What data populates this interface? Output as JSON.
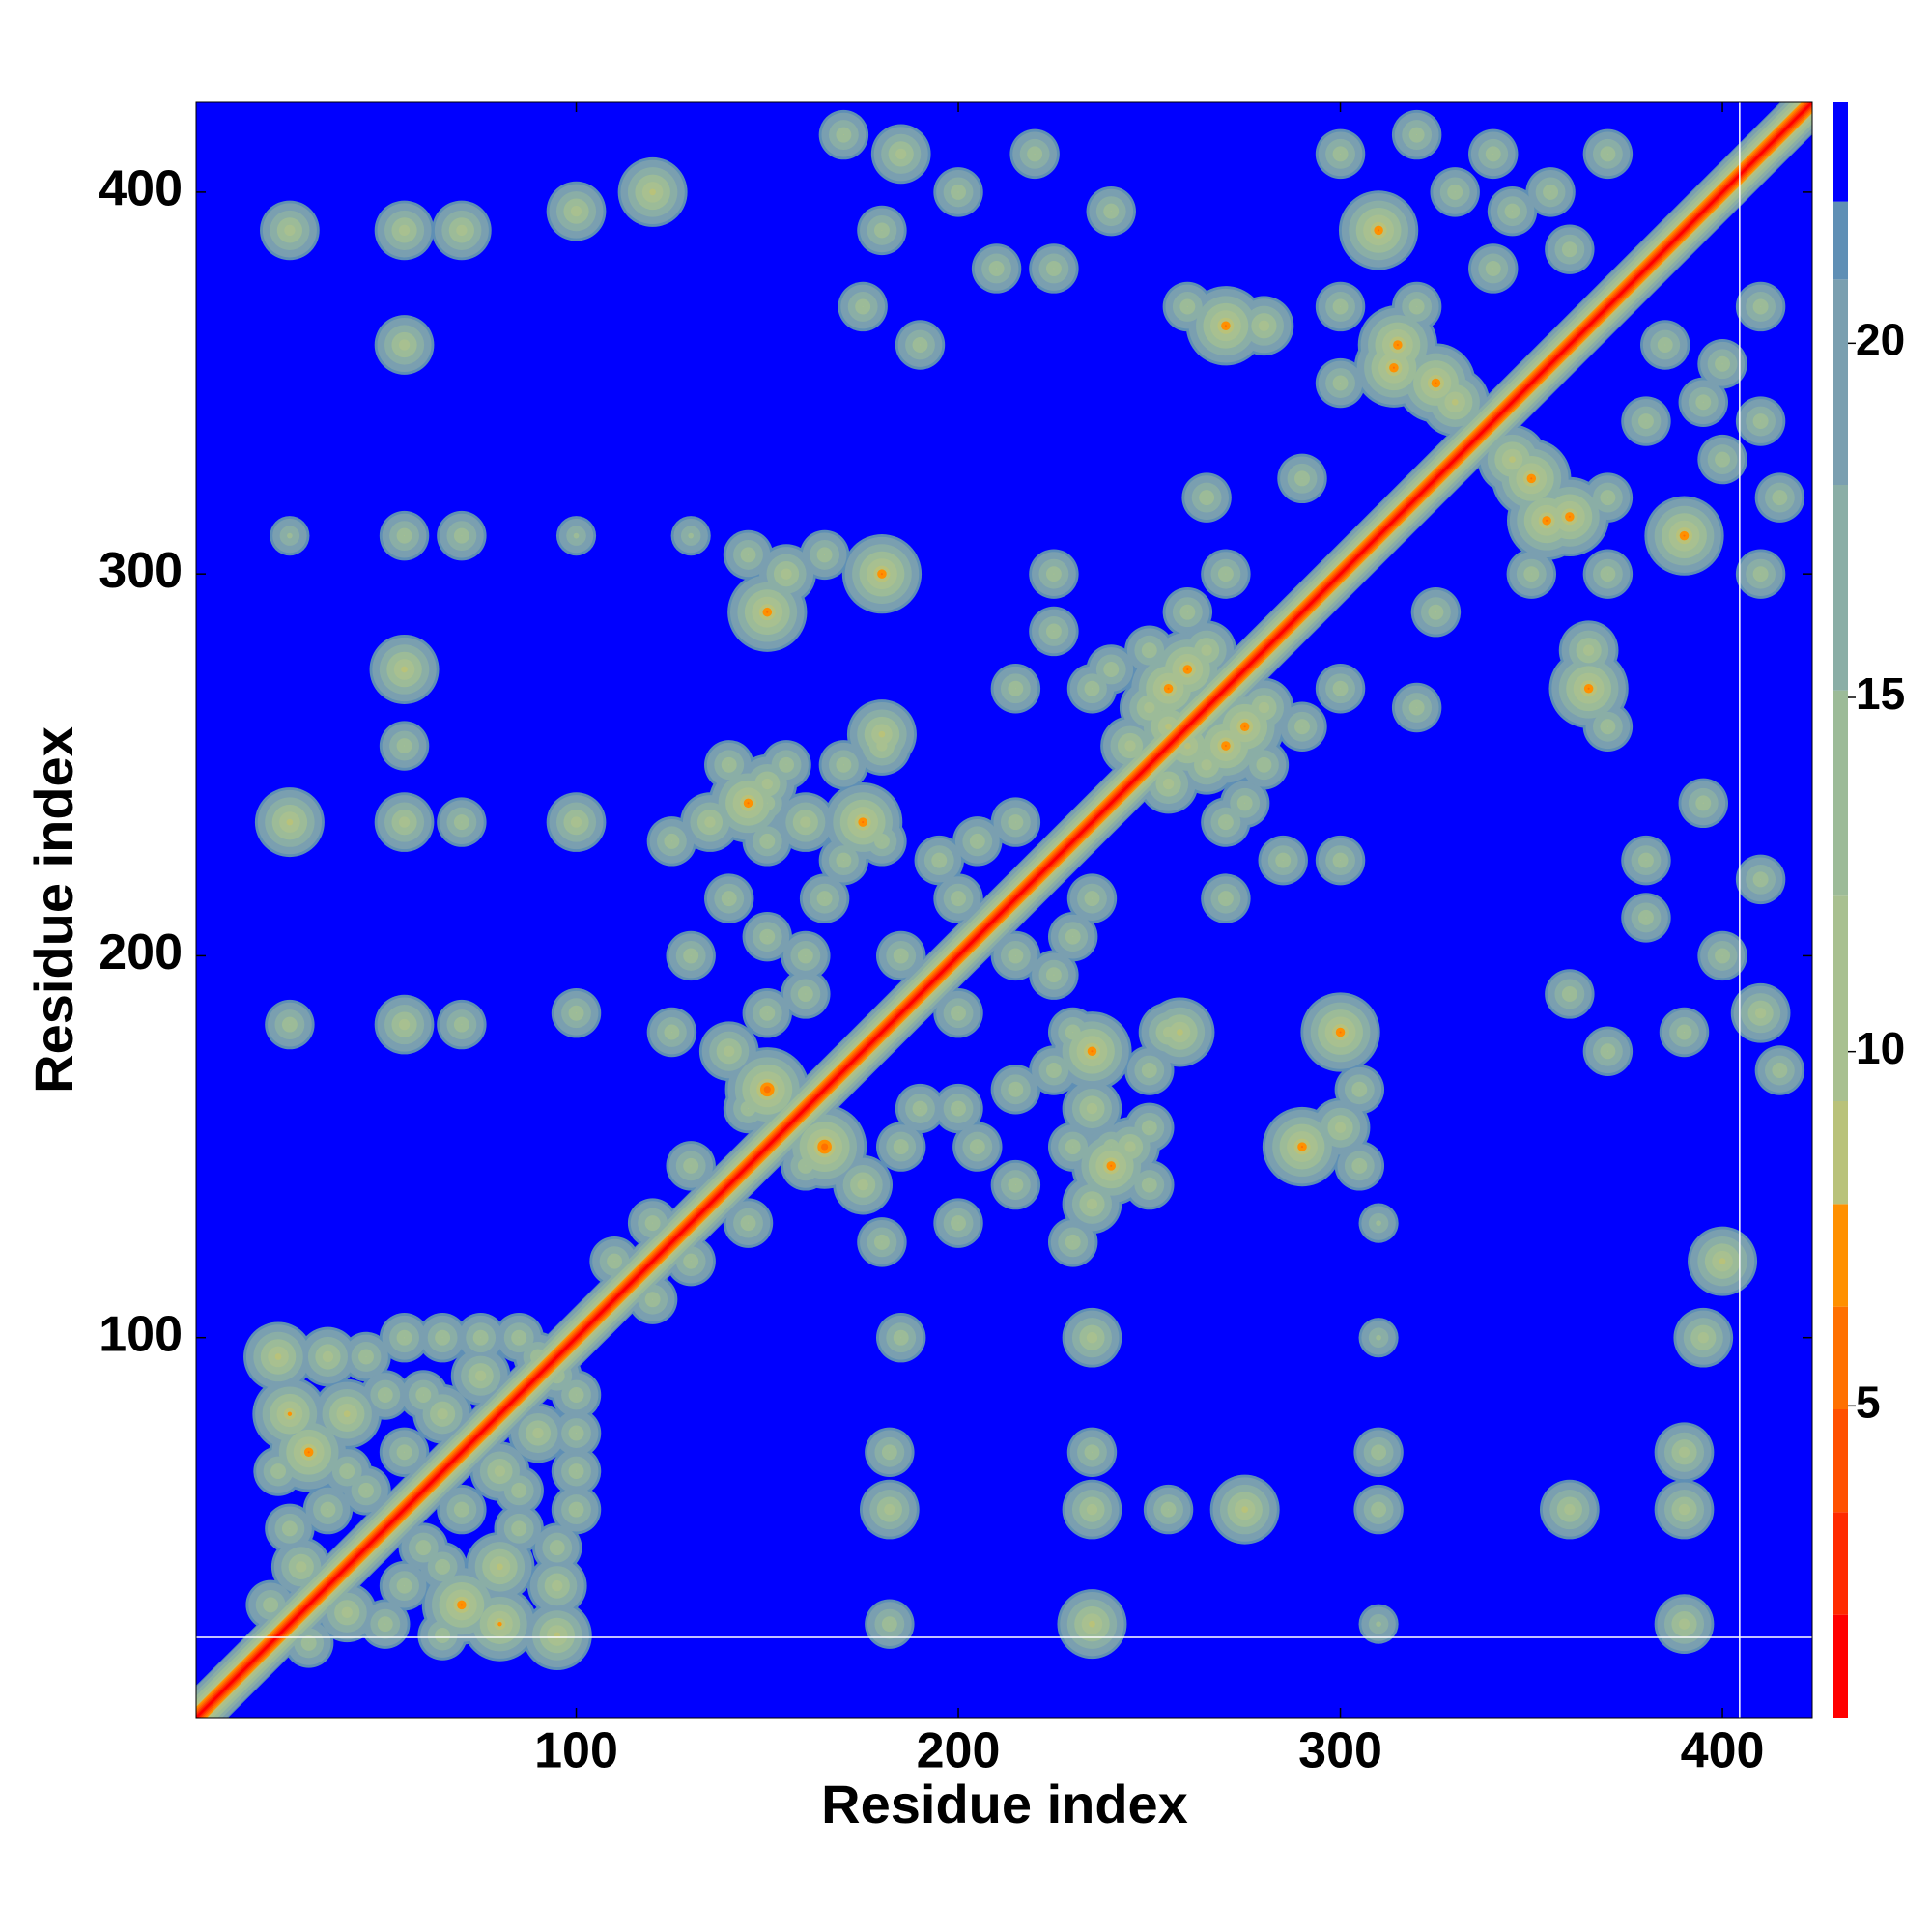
{
  "chart_data": {
    "type": "contact_map",
    "xlabel": "Residue index",
    "ylabel": "Residue index",
    "xlim": [
      0.5,
      423.5
    ],
    "ylim": [
      0.5,
      423.5
    ],
    "xticks": [
      100,
      200,
      300,
      400
    ],
    "yticks": [
      100,
      200,
      300,
      400
    ],
    "hlines": [
      21.5
    ],
    "vlines": [
      404.5
    ],
    "diagonal": 0.8,
    "x": [
      22,
      25,
      30,
      35,
      45,
      55,
      65,
      75,
      85,
      22,
      25,
      28,
      40,
      50,
      60,
      45,
      55,
      35,
      40,
      65,
      75,
      90,
      20,
      150,
      140,
      150,
      160,
      165,
      170,
      175,
      180,
      160,
      140,
      130,
      125,
      135,
      150,
      200,
      185,
      195,
      205,
      215,
      120,
      130,
      110,
      145,
      160,
      150,
      170,
      150,
      150,
      155,
      150,
      155,
      180,
      145,
      165,
      180,
      225,
      225,
      235,
      240,
      250,
      260,
      215,
      255,
      260,
      270,
      280,
      265,
      245,
      310,
      315,
      325,
      320,
      330,
      340,
      345,
      355,
      360,
      270,
      280,
      260,
      300,
      265,
      270,
      290,
      185,
      200,
      220,
      170,
      180,
      210,
      225,
      190,
      240,
      175,
      25,
      55,
      70,
      100,
      120,
      55,
      55,
      70,
      25,
      100,
      55,
      55,
      25,
      55,
      70,
      100,
      125,
      25,
      55,
      70,
      100,
      130,
      140,
      145,
      180,
      314,
      300,
      330,
      340,
      370,
      320,
      300
    ],
    "y": [
      95,
      80,
      70,
      95,
      95,
      100,
      100,
      100,
      100,
      65,
      50,
      40,
      80,
      85,
      85,
      60,
      70,
      55,
      65,
      80,
      90,
      95,
      30,
      165,
      175,
      185,
      200,
      215,
      225,
      235,
      230,
      235,
      215,
      200,
      180,
      235,
      240,
      215,
      200,
      225,
      230,
      235,
      130,
      145,
      120,
      160,
      190,
      205,
      250,
      230,
      245,
      250,
      290,
      300,
      300,
      305,
      305,
      255,
      300,
      285,
      270,
      275,
      280,
      290,
      270,
      260,
      275,
      255,
      265,
      250,
      255,
      390,
      360,
      350,
      370,
      400,
      410,
      395,
      400,
      385,
      365,
      365,
      370,
      370,
      320,
      300,
      325,
      410,
      400,
      410,
      415,
      390,
      380,
      380,
      360,
      395,
      370,
      390,
      390,
      390,
      395,
      400,
      360,
      310,
      310,
      310,
      310,
      275,
      255,
      235,
      235,
      235,
      235,
      230,
      182,
      182,
      182,
      185,
      310,
      250,
      240,
      258,
      354,
      350,
      345,
      380,
      410,
      415,
      410
    ],
    "values": [
      8,
      7,
      6,
      10,
      12,
      12,
      12,
      12,
      12,
      12,
      12,
      10,
      8,
      12,
      12,
      12,
      12,
      12,
      12,
      10,
      10,
      12,
      12,
      5,
      10,
      12,
      12,
      12,
      12,
      6,
      12,
      10,
      12,
      12,
      12,
      10,
      12,
      12,
      12,
      12,
      12,
      12,
      12,
      12,
      12,
      12,
      12,
      12,
      12,
      12,
      10,
      12,
      6,
      10,
      6,
      12,
      12,
      10,
      12,
      12,
      12,
      12,
      12,
      12,
      12,
      8,
      6,
      6,
      10,
      10,
      10,
      6,
      6,
      6,
      12,
      12,
      12,
      12,
      12,
      12,
      6,
      10,
      12,
      12,
      12,
      12,
      12,
      10,
      12,
      12,
      12,
      12,
      12,
      12,
      12,
      12,
      12,
      10,
      10,
      10,
      10,
      8,
      10,
      12,
      12,
      14,
      14,
      8,
      12,
      8,
      10,
      12,
      10,
      12,
      12,
      10,
      12,
      12,
      14,
      12,
      6,
      8,
      6,
      12,
      8,
      12,
      12,
      12,
      12
    ],
    "colorbar": {
      "levels": [
        0.6,
        2.05,
        3.5,
        4.95,
        6.4,
        7.85,
        9.3,
        12.2,
        15.1,
        18,
        20.9,
        22,
        23.4
      ],
      "colors": [
        "#ff0000",
        "#ff2a00",
        "#ff5000",
        "#ff7000",
        "#ff9000",
        "#b9c27a",
        "#a8c090",
        "#9cbb98",
        "#8aaea6",
        "#7a9fb0",
        "#5f8fb5",
        "#0000ff"
      ],
      "ticks": [
        5,
        10,
        15,
        20
      ]
    }
  }
}
